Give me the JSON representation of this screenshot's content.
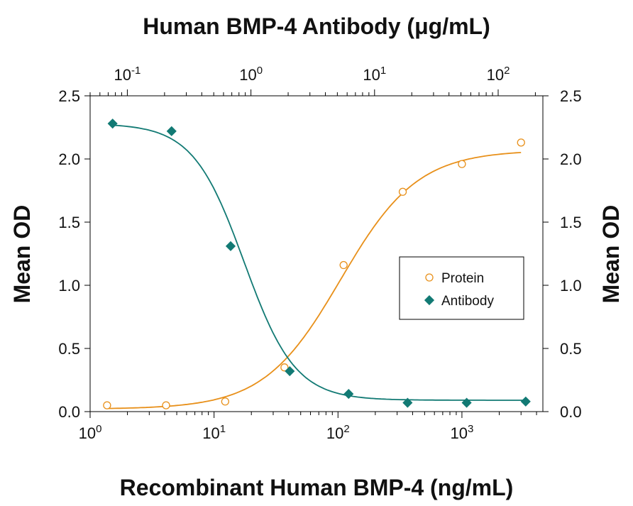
{
  "chart_data": {
    "type": "scatter",
    "title_top": "Human BMP-4 Antibody (μg/mL)",
    "xlabel": "Recombinant Human BMP-4 (ng/mL)",
    "ylabel_left": "Mean OD",
    "ylabel_right": "Mean OD",
    "x_scale": "log",
    "xlim": [
      1,
      4500
    ],
    "ylim": [
      0,
      2.5
    ],
    "x_ticks": [
      1,
      10,
      100,
      1000
    ],
    "x_tick_labels": [
      {
        "base": "10",
        "exp": "0"
      },
      {
        "base": "10",
        "exp": "1"
      },
      {
        "base": "10",
        "exp": "2"
      },
      {
        "base": "10",
        "exp": "3"
      }
    ],
    "x2_scale": "log",
    "x2lim": [
      0.05,
      230
    ],
    "x2_ticks": [
      0.1,
      1,
      10,
      100
    ],
    "x2_tick_labels": [
      {
        "base": "10",
        "exp": "-1"
      },
      {
        "base": "10",
        "exp": "0"
      },
      {
        "base": "10",
        "exp": "1"
      },
      {
        "base": "10",
        "exp": "2"
      }
    ],
    "y_ticks": [
      0.0,
      0.5,
      1.0,
      1.5,
      2.0,
      2.5
    ],
    "y_tick_labels": [
      "0.0",
      "0.5",
      "1.0",
      "1.5",
      "2.0",
      "2.5"
    ],
    "grid": false,
    "legend_position": "right-middle",
    "series": [
      {
        "name": "Protein",
        "axis": "bottom",
        "marker": "open-circle",
        "color": "#e8901a",
        "x": [
          1.37,
          4.1,
          12.3,
          37,
          111,
          333,
          1000,
          3000
        ],
        "y": [
          0.05,
          0.05,
          0.08,
          0.35,
          1.16,
          1.74,
          1.96,
          2.13
        ],
        "fit": {
          "bottom": 0.02,
          "top": 2.07,
          "ec50": 105,
          "hill": 1.4
        }
      },
      {
        "name": "Antibody",
        "axis": "top",
        "marker": "filled-diamond",
        "color": "#127a74",
        "x": [
          0.076,
          0.228,
          0.685,
          2.06,
          6.17,
          18.5,
          55.6,
          167
        ],
        "y": [
          2.28,
          2.22,
          1.31,
          0.32,
          0.14,
          0.07,
          0.07,
          0.08
        ],
        "fit": {
          "bottom": 0.09,
          "top": 2.28,
          "ec50": 0.88,
          "hill": 2.1
        }
      }
    ]
  }
}
